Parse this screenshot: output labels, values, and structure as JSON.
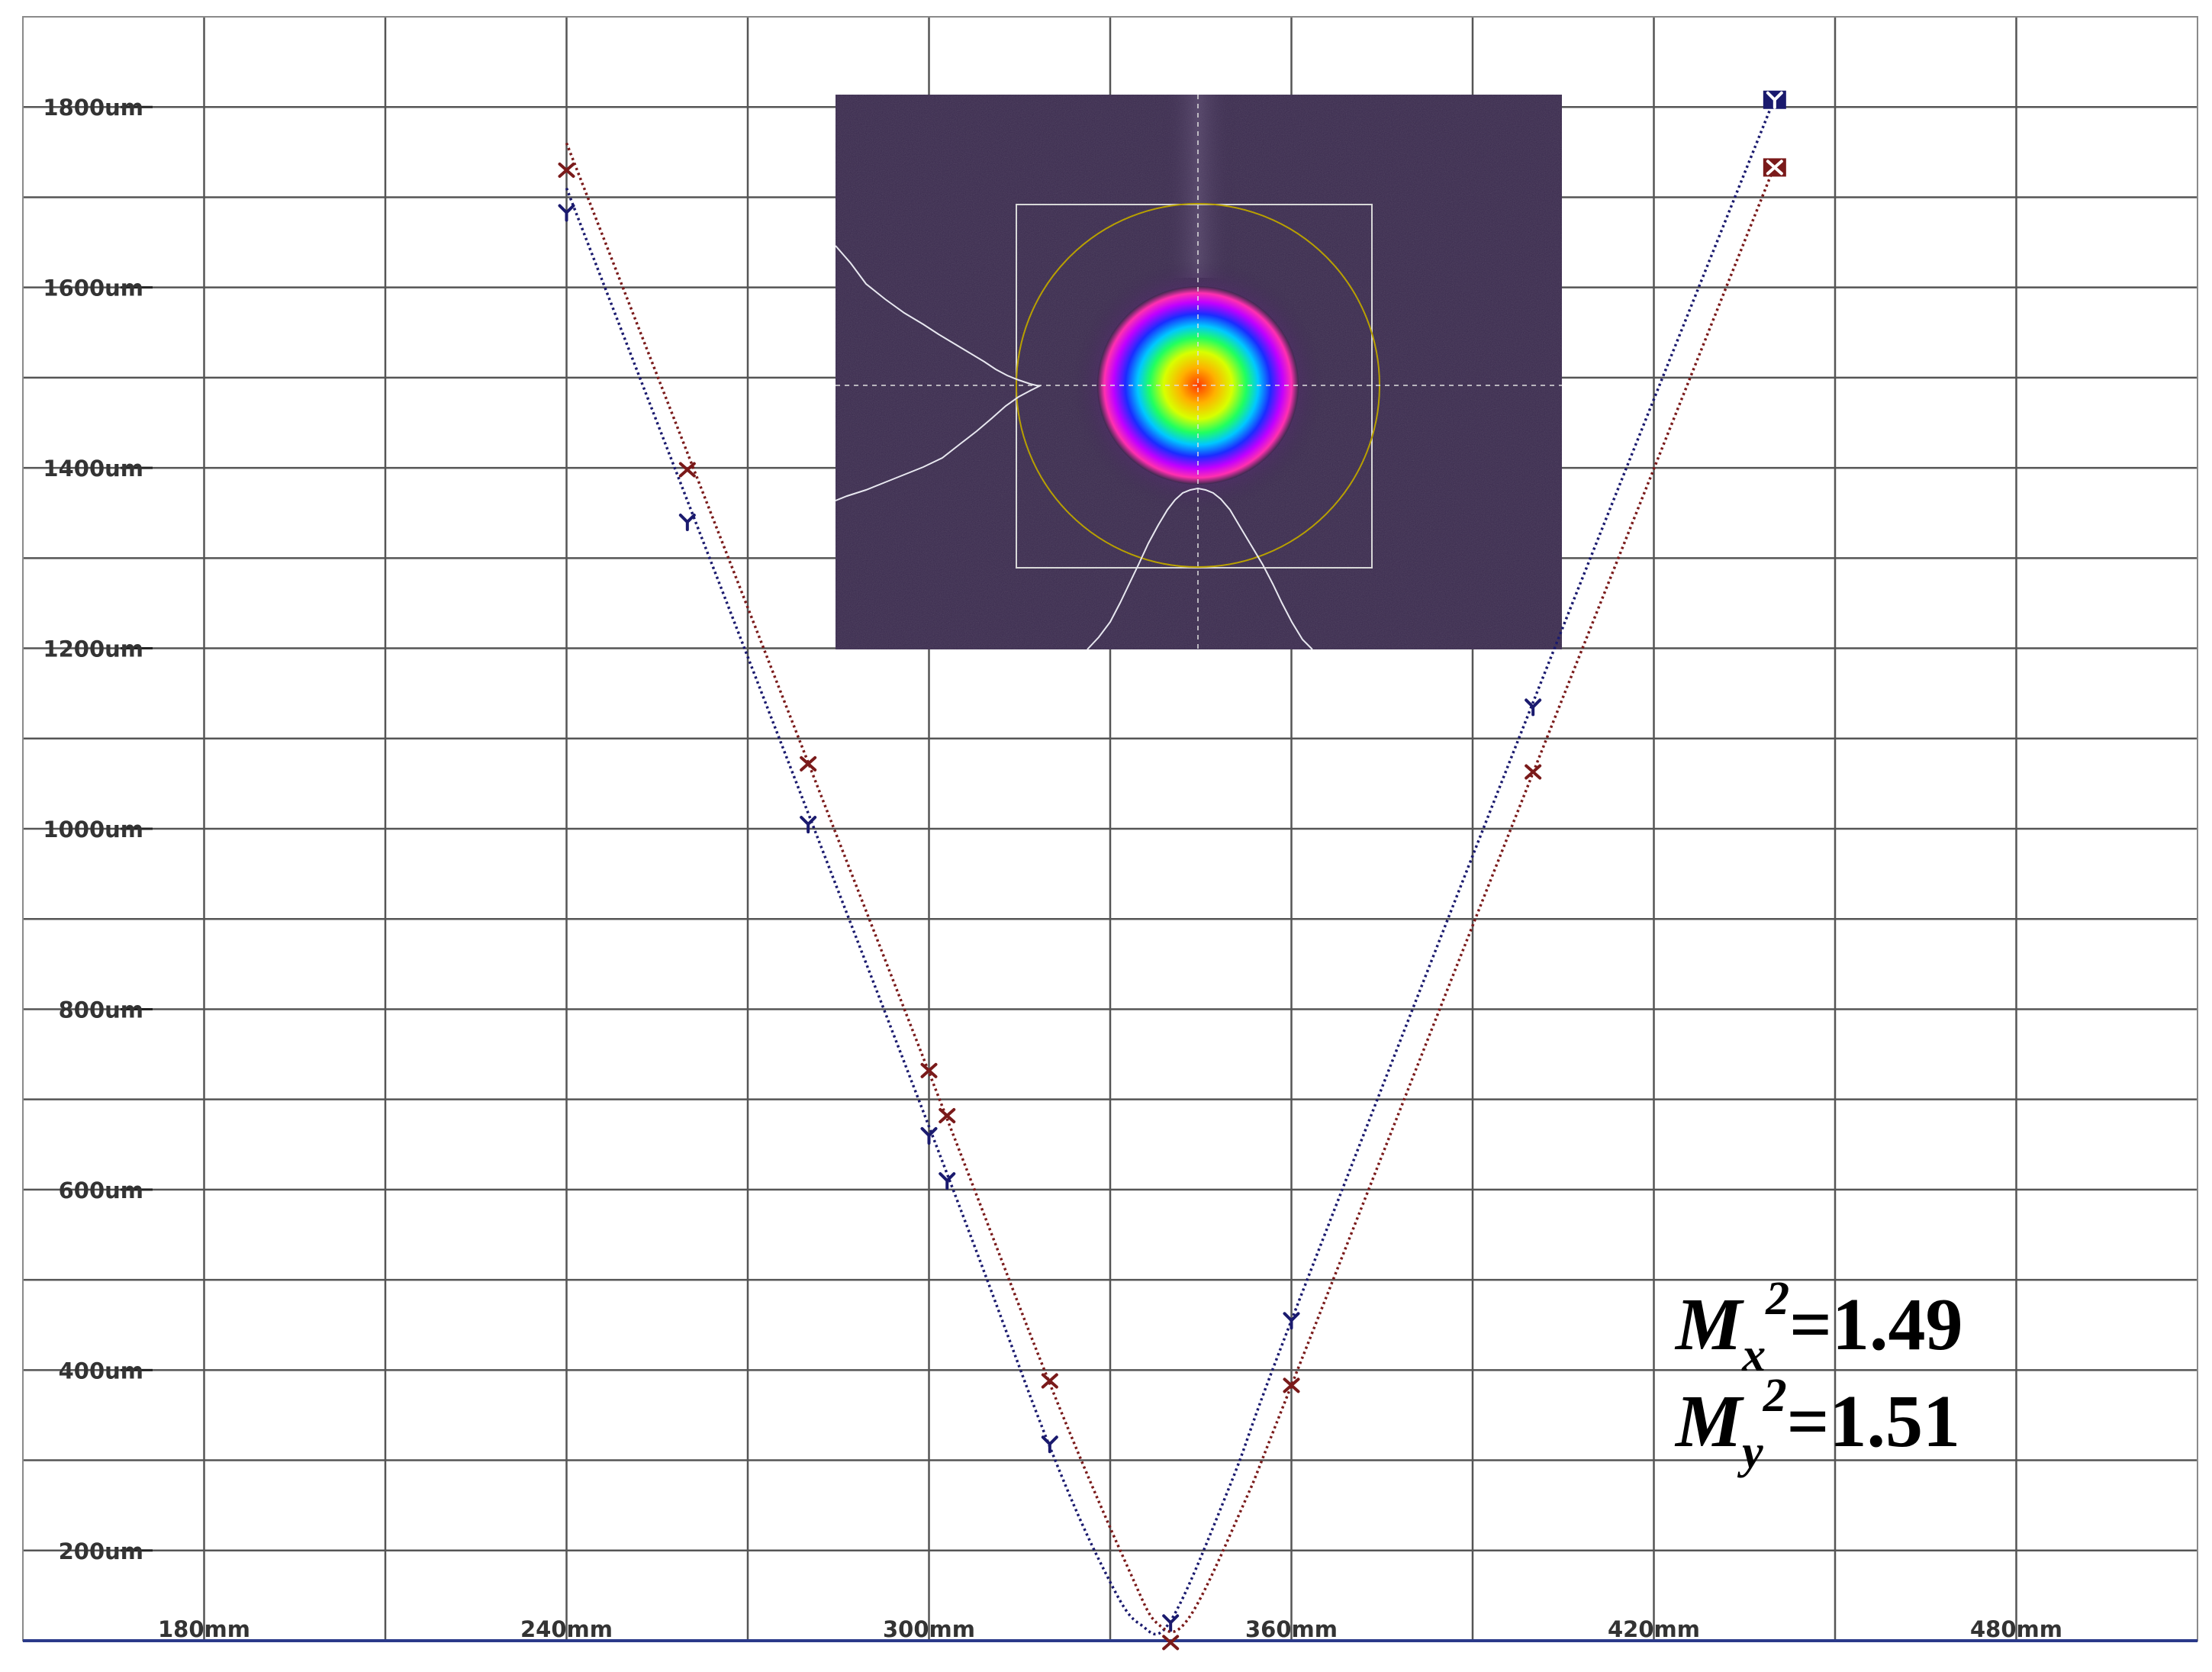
{
  "chart_data": {
    "type": "scatter",
    "x_unit": "mm",
    "y_unit": "um",
    "xlim": [
      150,
      510
    ],
    "ylim": [
      100,
      1900
    ],
    "grid": true,
    "x_ticks": [
      {
        "value": 180,
        "label": "180mm"
      },
      {
        "value": 240,
        "label": "240mm"
      },
      {
        "value": 300,
        "label": "300mm"
      },
      {
        "value": 360,
        "label": "360mm"
      },
      {
        "value": 420,
        "label": "420mm"
      },
      {
        "value": 480,
        "label": "480mm"
      }
    ],
    "y_ticks": [
      {
        "value": 200,
        "label": "200um"
      },
      {
        "value": 400,
        "label": "400um"
      },
      {
        "value": 600,
        "label": "600um"
      },
      {
        "value": 800,
        "label": "800um"
      },
      {
        "value": 1000,
        "label": "1000um"
      },
      {
        "value": 1200,
        "label": "1200um"
      },
      {
        "value": 1400,
        "label": "1400um"
      },
      {
        "value": 1600,
        "label": "1600um"
      },
      {
        "value": 1800,
        "label": "1800um"
      }
    ],
    "series": [
      {
        "marker": "Y",
        "color": "#1a1a6e",
        "points": [
          {
            "x": 240,
            "y": 1683
          },
          {
            "x": 260,
            "y": 1340
          },
          {
            "x": 280,
            "y": 1005
          },
          {
            "x": 300,
            "y": 660
          },
          {
            "x": 303,
            "y": 610
          },
          {
            "x": 320,
            "y": 318
          },
          {
            "x": 340,
            "y": 120
          },
          {
            "x": 360,
            "y": 455
          },
          {
            "x": 400,
            "y": 1135
          },
          {
            "x": 440,
            "y": 1808
          }
        ],
        "fit": [
          {
            "x": 240,
            "y": 1710
          },
          {
            "x": 300,
            "y": 670
          },
          {
            "x": 320,
            "y": 315
          },
          {
            "x": 330,
            "y": 165
          },
          {
            "x": 335,
            "y": 118
          },
          {
            "x": 340,
            "y": 122
          },
          {
            "x": 350,
            "y": 275
          },
          {
            "x": 360,
            "y": 455
          },
          {
            "x": 400,
            "y": 1140
          },
          {
            "x": 440,
            "y": 1810
          }
        ]
      },
      {
        "marker": "x",
        "color": "#7a1a1a",
        "points": [
          {
            "x": 240,
            "y": 1730
          },
          {
            "x": 260,
            "y": 1398
          },
          {
            "x": 280,
            "y": 1072
          },
          {
            "x": 300,
            "y": 732
          },
          {
            "x": 303,
            "y": 682
          },
          {
            "x": 320,
            "y": 388
          },
          {
            "x": 340,
            "y": 98
          },
          {
            "x": 360,
            "y": 383
          },
          {
            "x": 400,
            "y": 1063
          },
          {
            "x": 440,
            "y": 1733
          }
        ],
        "fit": [
          {
            "x": 240,
            "y": 1760
          },
          {
            "x": 300,
            "y": 730
          },
          {
            "x": 320,
            "y": 385
          },
          {
            "x": 333,
            "y": 180
          },
          {
            "x": 338,
            "y": 118
          },
          {
            "x": 343,
            "y": 125
          },
          {
            "x": 352,
            "y": 250
          },
          {
            "x": 360,
            "y": 383
          },
          {
            "x": 400,
            "y": 1062
          },
          {
            "x": 440,
            "y": 1735
          }
        ]
      }
    ],
    "annotation": {
      "mx": {
        "base": "M",
        "sub": "x",
        "sup": "2",
        "value": "=1.49"
      },
      "my": {
        "base": "M",
        "sub": "y",
        "sup": "2",
        "value": "=1.51"
      }
    },
    "inset": {
      "description_colors": {
        "background": "#3a2a4e",
        "ring": "#b8a000",
        "box": "#d8d8d8"
      }
    }
  }
}
